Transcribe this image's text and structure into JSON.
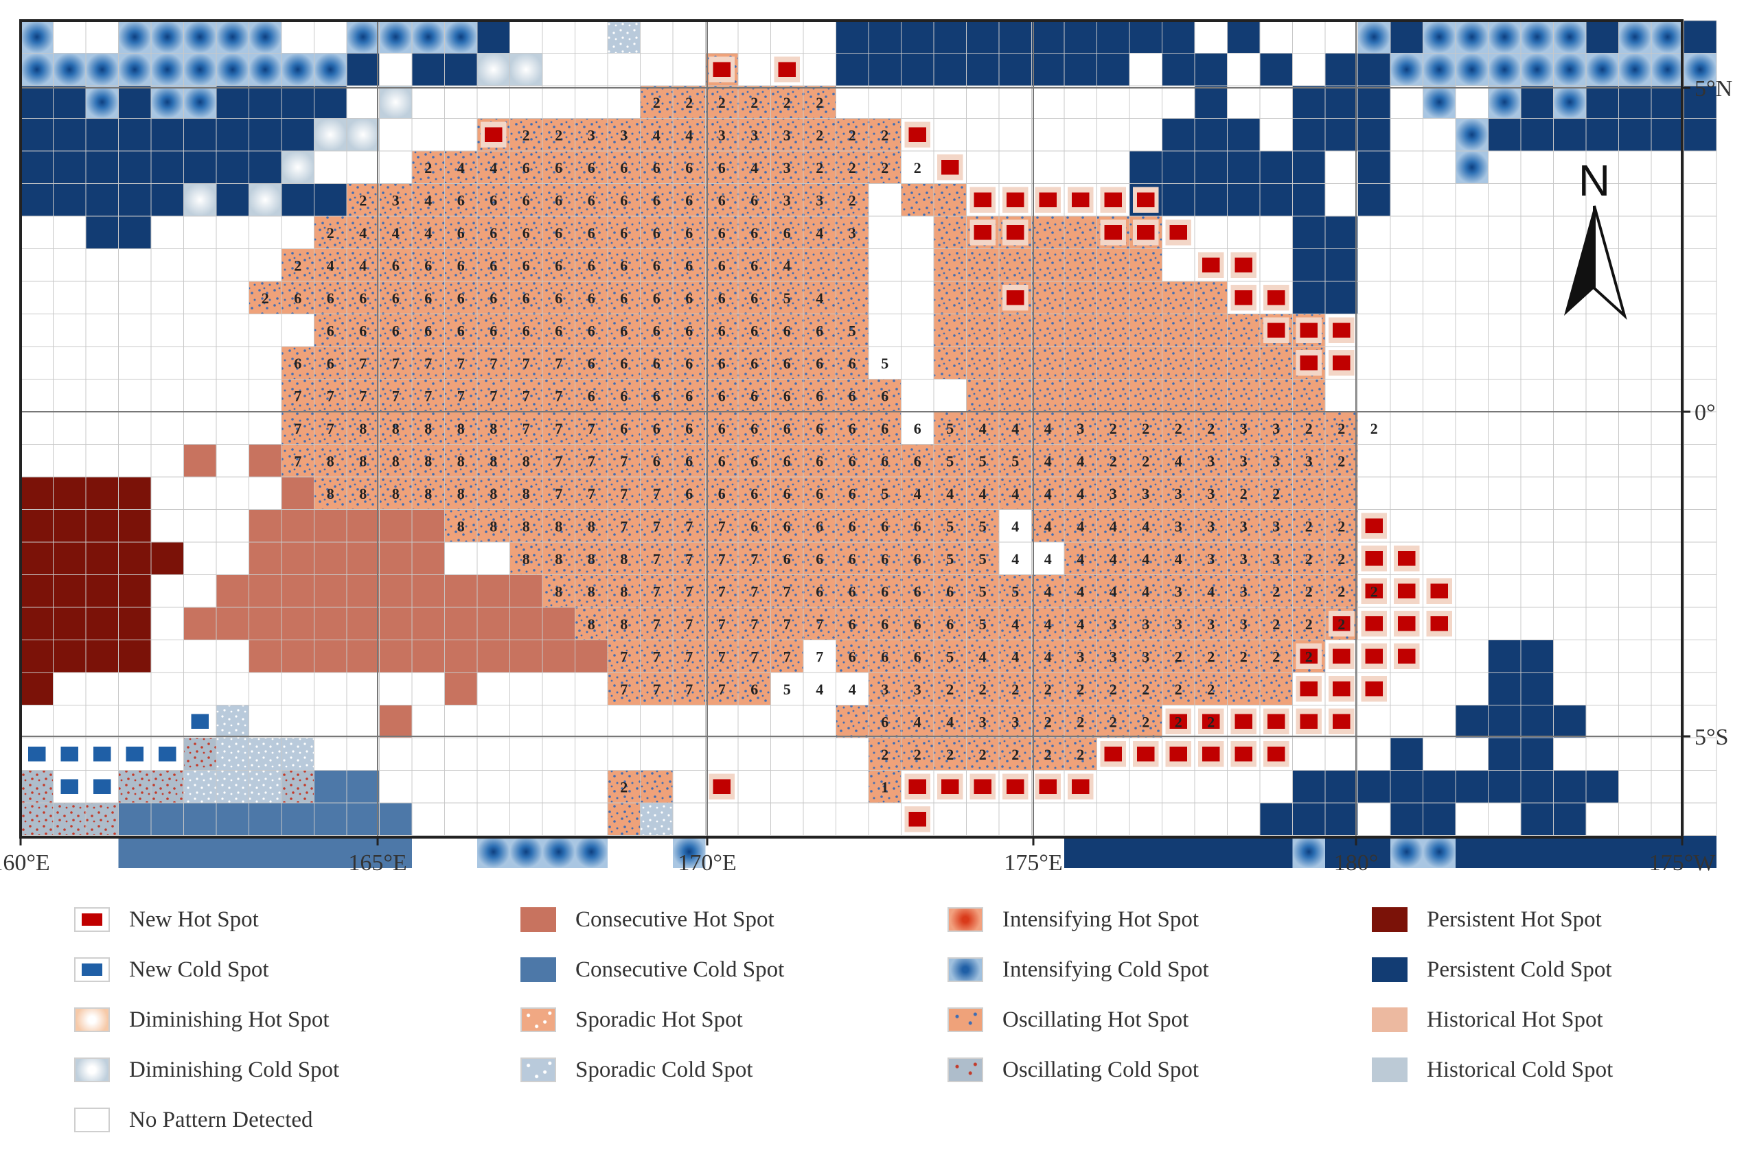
{
  "map": {
    "x_tick_labels": [
      "160°E",
      "165°E",
      "170°E",
      "175°E",
      "180°",
      "175°W"
    ],
    "y_tick_labels": [
      "5°N",
      "0°",
      "5°S"
    ],
    "north_label": "N",
    "colors": {
      "new_hot": "#c00000",
      "new_cold": "#1f5fa6",
      "consecutive_hot": "#c8735f",
      "consecutive_cold": "#4d78a8",
      "persistent_hot": "#7b1208",
      "persistent_cold": "#123c73",
      "oscillating_hot": "#efa27a",
      "intensifying_cold": "#2c6fb4",
      "sporadic_cold": "#b9cadb",
      "diminishing_cold": "#bfcfdc",
      "grid_line": "#c8c8c8"
    }
  },
  "legend": {
    "items": [
      {
        "label": "New Hot Spot",
        "icon": "new-hot-spot-swatch"
      },
      {
        "label": "New Cold Spot",
        "icon": "new-cold-spot-swatch"
      },
      {
        "label": "Diminishing Hot Spot",
        "icon": "diminishing-hot-spot-swatch"
      },
      {
        "label": "Diminishing Cold Spot",
        "icon": "diminishing-cold-spot-swatch"
      },
      {
        "label": "No Pattern Detected",
        "icon": "no-pattern-swatch"
      },
      {
        "label": "Consecutive Hot Spot",
        "icon": "consecutive-hot-spot-swatch"
      },
      {
        "label": "Consecutive Cold Spot",
        "icon": "consecutive-cold-spot-swatch"
      },
      {
        "label": "Sporadic Hot Spot",
        "icon": "sporadic-hot-spot-swatch"
      },
      {
        "label": "Sporadic Cold Spot",
        "icon": "sporadic-cold-spot-swatch"
      },
      {
        "label": "Intensifying Hot Spot",
        "icon": "intensifying-hot-spot-swatch"
      },
      {
        "label": "Intensifying Cold Spot",
        "icon": "intensifying-cold-spot-swatch"
      },
      {
        "label": "Oscillating Hot Spot",
        "icon": "oscillating-hot-spot-swatch"
      },
      {
        "label": "Oscillating Cold Spot",
        "icon": "oscillating-cold-spot-swatch"
      },
      {
        "label": "Persistent Hot Spot",
        "icon": "persistent-hot-spot-swatch"
      },
      {
        "label": "Persistent Cold Spot",
        "icon": "persistent-cold-spot-swatch"
      },
      {
        "label": "Historical Hot Spot",
        "icon": "historical-hot-spot-swatch"
      },
      {
        "label": "Historical Cold Spot",
        "icon": "historical-cold-spot-swatch"
      }
    ]
  }
}
